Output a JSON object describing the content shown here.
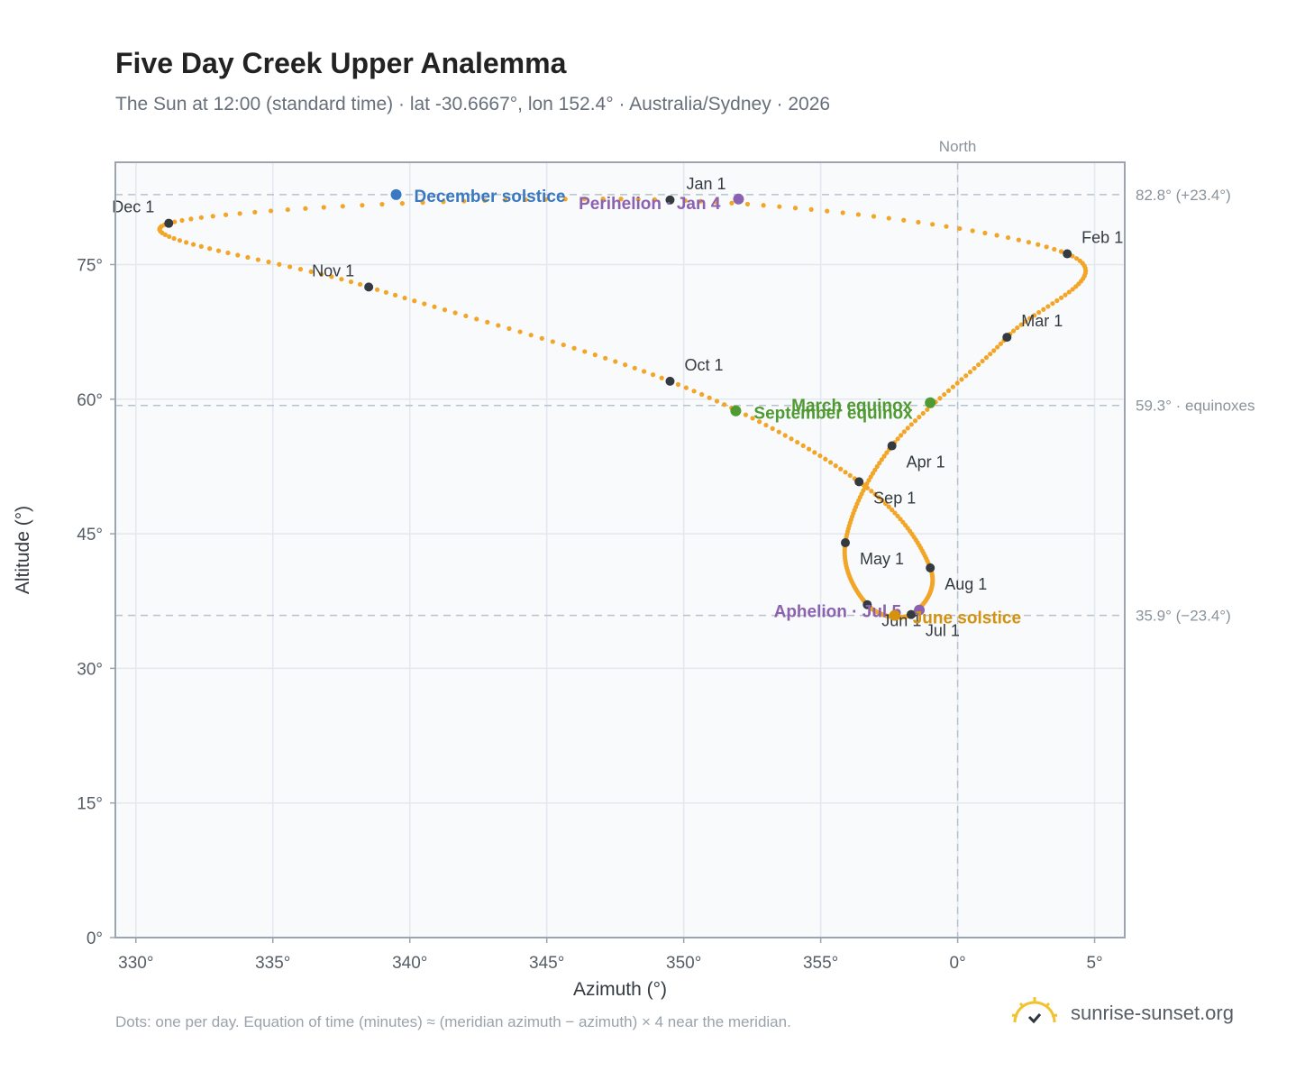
{
  "title": "Five Day Creek Upper Analemma",
  "subtitle": "The Sun at 12:00 (standard time) · lat -30.6667°, lon 152.4° · Australia/Sydney · 2026",
  "footnote": "Dots: one per day. Equation of time (minutes) ≈ (meridian azimuth − azimuth) × 4 near the meridian.",
  "brand": "sunrise-sunset.org",
  "chart_data": {
    "type": "scatter",
    "xlabel": "Azimuth (°)",
    "ylabel": "Altitude (°)",
    "x_ticks": [
      330,
      335,
      340,
      345,
      350,
      355,
      0,
      5
    ],
    "x_tick_labels": [
      "330°",
      "335°",
      "340°",
      "345°",
      "350°",
      "355°",
      "0°",
      "5°"
    ],
    "y_ticks": [
      0,
      15,
      30,
      45,
      60,
      75
    ],
    "y_tick_labels": [
      "0°",
      "15°",
      "30°",
      "45°",
      "60°",
      "75°"
    ],
    "xlim": [
      329.25,
      366.1
    ],
    "ylim": [
      0,
      86.4
    ],
    "grid": true,
    "meridian": {
      "label": "North",
      "azimuth": 0
    },
    "reference_lines": [
      {
        "value": 82.8,
        "label": "82.8° (+23.4°)"
      },
      {
        "value": 59.3,
        "label": "59.3° · equinoxes"
      },
      {
        "value": 35.9,
        "label": "35.9° (−23.4°)"
      }
    ],
    "analemma_points": [
      {
        "date": "Jan 1",
        "az": 349.5,
        "alt": 82.2
      },
      {
        "date": "Feb 1",
        "az": 4.0,
        "alt": 76.2
      },
      {
        "date": "Mar 1",
        "az": 1.8,
        "alt": 66.9
      },
      {
        "date": "Apr 1",
        "az": 357.6,
        "alt": 54.8
      },
      {
        "date": "May 1",
        "az": 355.9,
        "alt": 44.0
      },
      {
        "date": "Jun 1",
        "az": 356.7,
        "alt": 37.1
      },
      {
        "date": "Jul 1",
        "az": 358.3,
        "alt": 36.0
      },
      {
        "date": "Aug 1",
        "az": 359.0,
        "alt": 41.2
      },
      {
        "date": "Sep 1",
        "az": 356.4,
        "alt": 50.8
      },
      {
        "date": "Oct 1",
        "az": 349.5,
        "alt": 62.0
      },
      {
        "date": "Nov 1",
        "az": 338.5,
        "alt": 72.5
      },
      {
        "date": "Dec 1",
        "az": 331.2,
        "alt": 79.6
      }
    ],
    "month_labels": [
      "Jan 1",
      "Feb 1",
      "Mar 1",
      "Apr 1",
      "May 1",
      "Jun 1",
      "Jul 1",
      "Aug 1",
      "Sep 1",
      "Oct 1",
      "Nov 1",
      "Dec 1"
    ],
    "events": [
      {
        "label": "December solstice",
        "az": 339.5,
        "alt": 82.8,
        "color": "#3a78c2"
      },
      {
        "label": "Perihelion · Jan 4",
        "az": 352.0,
        "alt": 82.3,
        "color": "#8b62b0"
      },
      {
        "label": "March equinox",
        "az": 359.0,
        "alt": 59.6,
        "color": "#4f9a31"
      },
      {
        "label": "September equinox",
        "az": 351.9,
        "alt": 58.7,
        "color": "#4f9a31"
      },
      {
        "label": "Aphelion · Jul 5",
        "az": 358.6,
        "alt": 36.5,
        "color": "#8b62b0"
      },
      {
        "label": "June solstice",
        "az": 357.7,
        "alt": 35.9,
        "color": "#d4920f"
      }
    ],
    "curve_color": "#f2a526",
    "marker_color": "#333a40"
  }
}
